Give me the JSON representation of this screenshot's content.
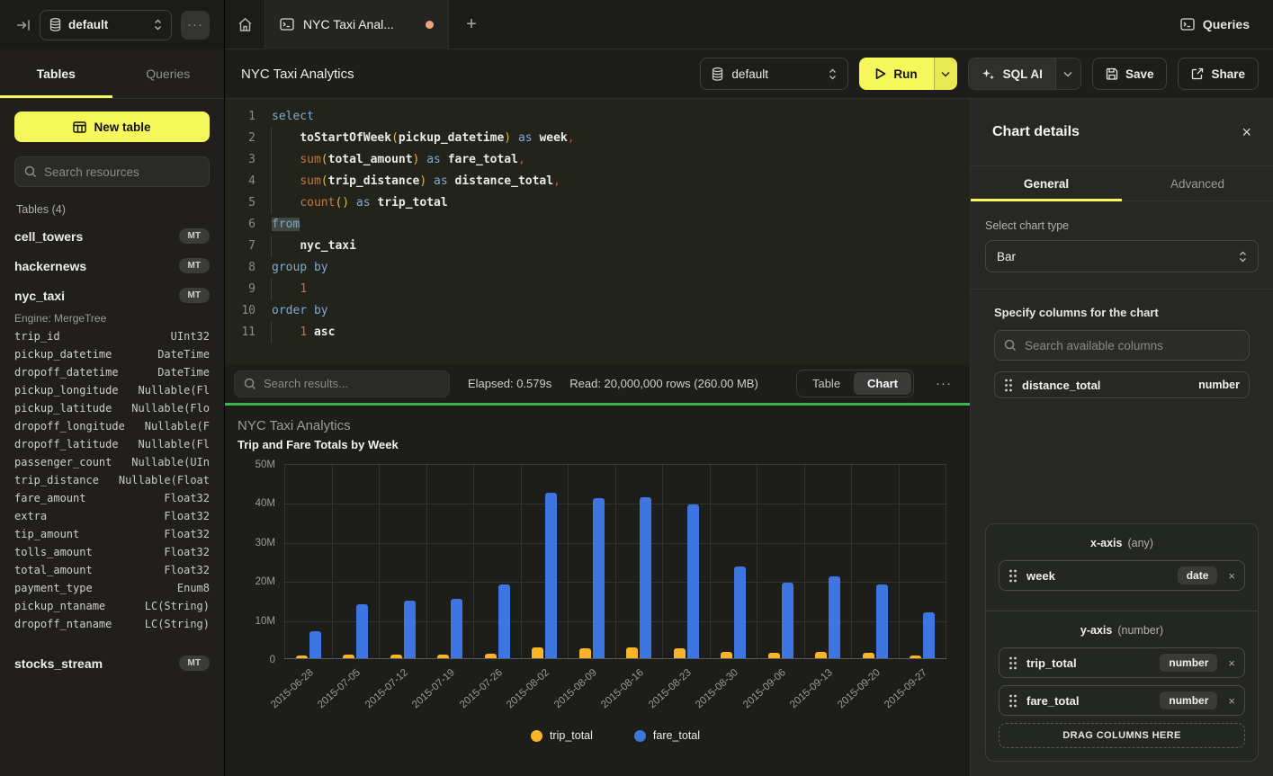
{
  "colors": {
    "accent_yellow": "#f6f75a",
    "run_green_divider": "#40b14c",
    "trip_total_bar": "#f9b42a",
    "fare_total_bar": "#3d76e0",
    "dirty_dot": "#f0a27d"
  },
  "topbar": {
    "sidebar_database": "default",
    "more": "···",
    "tab_title": "NYC Taxi Anal...",
    "queries_label": "Queries"
  },
  "sidebar": {
    "tabs": [
      {
        "label": "Tables"
      },
      {
        "label": "Queries"
      }
    ],
    "new_table_label": "New table",
    "search_placeholder": "Search resources",
    "section_label": "Tables (4)",
    "tables": [
      {
        "name": "cell_towers",
        "badge": "MT"
      },
      {
        "name": "hackernews",
        "badge": "MT"
      },
      {
        "name": "nyc_taxi",
        "badge": "MT",
        "expanded": true,
        "engine": "Engine: MergeTree",
        "columns": [
          [
            "trip_id",
            "UInt32"
          ],
          [
            "pickup_datetime",
            "DateTime"
          ],
          [
            "dropoff_datetime",
            "DateTime"
          ],
          [
            "pickup_longitude",
            "Nullable(Fl"
          ],
          [
            "pickup_latitude",
            "Nullable(Flo"
          ],
          [
            "dropoff_longitude",
            "Nullable(F"
          ],
          [
            "dropoff_latitude",
            "Nullable(Fl"
          ],
          [
            "passenger_count",
            "Nullable(UIn"
          ],
          [
            "trip_distance",
            "Nullable(Float"
          ],
          [
            "fare_amount",
            "Float32"
          ],
          [
            "extra",
            "Float32"
          ],
          [
            "tip_amount",
            "Float32"
          ],
          [
            "tolls_amount",
            "Float32"
          ],
          [
            "total_amount",
            "Float32"
          ],
          [
            "payment_type",
            "Enum8"
          ],
          [
            "pickup_ntaname",
            "LC(String)"
          ],
          [
            "dropoff_ntaname",
            "LC(String)"
          ]
        ]
      },
      {
        "name": "stocks_stream",
        "badge": "MT"
      }
    ]
  },
  "editor_header": {
    "title": "NYC Taxi Analytics",
    "database": "default",
    "run_label": "Run",
    "sql_ai_label": "SQL AI",
    "save_label": "Save",
    "share_label": "Share"
  },
  "editor": {
    "lines": [
      {
        "n": "1",
        "seg": [
          [
            "kw",
            "select"
          ]
        ]
      },
      {
        "n": "2",
        "ind": true,
        "seg": [
          [
            "pl",
            "    "
          ],
          [
            "id",
            "toStartOfWeek"
          ],
          [
            "par",
            "("
          ],
          [
            "id",
            "pickup_datetime"
          ],
          [
            "par",
            ")"
          ],
          [
            "kw",
            " as "
          ],
          [
            "id",
            "week"
          ],
          [
            "com",
            ","
          ]
        ]
      },
      {
        "n": "3",
        "ind": true,
        "seg": [
          [
            "pl",
            "    "
          ],
          [
            "fn",
            "sum"
          ],
          [
            "par",
            "("
          ],
          [
            "id",
            "total_amount"
          ],
          [
            "par",
            ")"
          ],
          [
            "kw",
            " as "
          ],
          [
            "id",
            "fare_total"
          ],
          [
            "com",
            ","
          ]
        ]
      },
      {
        "n": "4",
        "ind": true,
        "seg": [
          [
            "pl",
            "    "
          ],
          [
            "fn",
            "sum"
          ],
          [
            "par",
            "("
          ],
          [
            "id",
            "trip_distance"
          ],
          [
            "par",
            ")"
          ],
          [
            "kw",
            " as "
          ],
          [
            "id",
            "distance_total"
          ],
          [
            "com",
            ","
          ]
        ]
      },
      {
        "n": "5",
        "ind": true,
        "seg": [
          [
            "pl",
            "    "
          ],
          [
            "fn",
            "count"
          ],
          [
            "par",
            "()"
          ],
          [
            "kw",
            " as "
          ],
          [
            "id",
            "trip_total"
          ]
        ]
      },
      {
        "n": "6",
        "seg": [
          [
            "kwsel",
            "from"
          ]
        ]
      },
      {
        "n": "7",
        "ind": true,
        "seg": [
          [
            "pl",
            "    "
          ],
          [
            "id",
            "nyc_taxi"
          ]
        ]
      },
      {
        "n": "8",
        "seg": [
          [
            "kw",
            "group by"
          ]
        ]
      },
      {
        "n": "9",
        "ind": true,
        "seg": [
          [
            "pl",
            "    "
          ],
          [
            "num",
            "1"
          ]
        ]
      },
      {
        "n": "10",
        "seg": [
          [
            "kw",
            "order by"
          ]
        ]
      },
      {
        "n": "11",
        "ind": true,
        "seg": [
          [
            "pl",
            "    "
          ],
          [
            "num",
            "1"
          ],
          [
            "id",
            " asc"
          ]
        ]
      }
    ]
  },
  "results_bar": {
    "search_placeholder": "Search results...",
    "elapsed": "Elapsed: 0.579s",
    "read": "Read: 20,000,000 rows (260.00 MB)",
    "views": [
      {
        "label": "Table"
      },
      {
        "label": "Chart",
        "active": true
      }
    ],
    "more": "···"
  },
  "chart_data": {
    "type": "bar",
    "title": "NYC Taxi Analytics",
    "subtitle": "Trip and Fare Totals by Week",
    "categories": [
      "2015-06-28",
      "2015-07-05",
      "2015-07-12",
      "2015-07-19",
      "2015-07-26",
      "2015-08-02",
      "2015-08-09",
      "2015-08-16",
      "2015-08-23",
      "2015-08-30",
      "2015-09-06",
      "2015-09-13",
      "2015-09-20",
      "2015-09-27"
    ],
    "series": [
      {
        "name": "trip_total",
        "color": "#f9b42a",
        "values": [
          600000,
          1000000,
          1000000,
          1000000,
          1200000,
          2800000,
          2600000,
          2700000,
          2600000,
          1600000,
          1400000,
          1500000,
          1400000,
          700000
        ]
      },
      {
        "name": "fare_total",
        "color": "#3d76e0",
        "values": [
          7000000,
          13900000,
          14800000,
          15300000,
          18800000,
          42400000,
          40900000,
          41300000,
          39400000,
          23600000,
          19400000,
          21000000,
          18900000,
          11700000
        ]
      }
    ],
    "ylim": [
      0,
      50000000
    ],
    "yticks": [
      "0",
      "10M",
      "20M",
      "30M",
      "40M",
      "50M"
    ],
    "legend_position": "bottom",
    "grid": true
  },
  "chart_details": {
    "title": "Chart details",
    "close": "×",
    "tabs": [
      {
        "label": "General",
        "active": true
      },
      {
        "label": "Advanced"
      }
    ],
    "chart_type_label": "Select chart type",
    "chart_type_value": "Bar",
    "columns_label": "Specify columns for the chart",
    "columns_search_placeholder": "Search available columns",
    "available_columns": [
      {
        "name": "distance_total",
        "type": "number"
      }
    ],
    "x_axis": {
      "label": "x-axis",
      "hint": "(any)",
      "items": [
        {
          "name": "week",
          "type": "date"
        }
      ]
    },
    "y_axis": {
      "label": "y-axis",
      "hint": "(number)",
      "items": [
        {
          "name": "trip_total",
          "type": "number"
        },
        {
          "name": "fare_total",
          "type": "number"
        }
      ]
    },
    "drop_zone_label": "DRAG COLUMNS HERE"
  }
}
